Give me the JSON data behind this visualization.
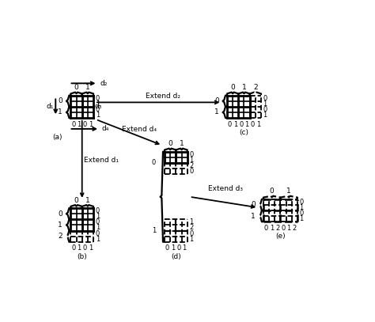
{
  "bg_color": "#ffffff",
  "fig_width": 4.74,
  "fig_height": 4.07,
  "dpi": 100,
  "xlim": [
    0,
    10
  ],
  "ylim": [
    0,
    8.6
  ]
}
